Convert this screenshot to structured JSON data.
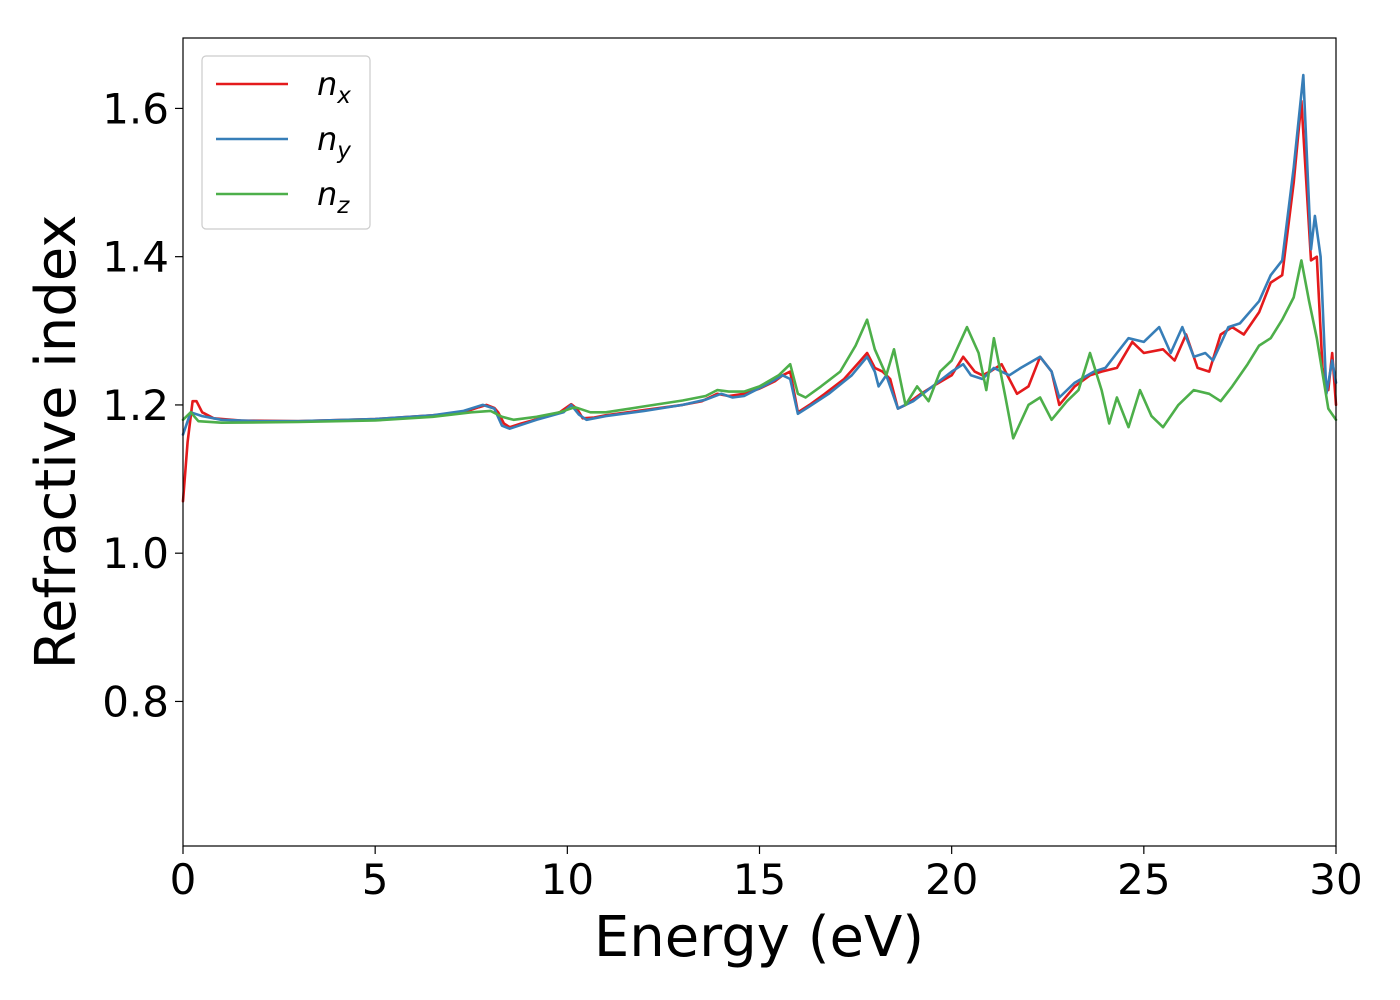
{
  "chart_data": {
    "type": "line",
    "title": "",
    "xlabel": "Energy (eV)",
    "ylabel": "Refractive index",
    "xlim": [
      0,
      30
    ],
    "ylim": [
      0.605,
      1.695
    ],
    "xticks": [
      0,
      5,
      10,
      15,
      20,
      25,
      30
    ],
    "xtick_labels": [
      "0",
      "5",
      "10",
      "15",
      "20",
      "25",
      "30"
    ],
    "yticks": [
      0.8,
      1.0,
      1.2,
      1.4,
      1.6
    ],
    "ytick_labels": [
      "0.8",
      "1.0",
      "1.2",
      "1.4",
      "1.6"
    ],
    "grid": false,
    "legend_position": "top-left",
    "series": [
      {
        "name": "n",
        "subscript": "x",
        "color": "#e41a1c",
        "points": [
          [
            0.0,
            1.07
          ],
          [
            0.12,
            1.15
          ],
          [
            0.25,
            1.205
          ],
          [
            0.35,
            1.205
          ],
          [
            0.5,
            1.19
          ],
          [
            0.8,
            1.182
          ],
          [
            1.5,
            1.179
          ],
          [
            3,
            1.178
          ],
          [
            5,
            1.181
          ],
          [
            6.5,
            1.186
          ],
          [
            7.3,
            1.19
          ],
          [
            7.7,
            1.197
          ],
          [
            7.9,
            1.2
          ],
          [
            8.1,
            1.196
          ],
          [
            8.2,
            1.19
          ],
          [
            8.35,
            1.175
          ],
          [
            8.5,
            1.17
          ],
          [
            8.8,
            1.175
          ],
          [
            9.3,
            1.182
          ],
          [
            9.8,
            1.19
          ],
          [
            10.1,
            1.201
          ],
          [
            10.25,
            1.195
          ],
          [
            10.4,
            1.182
          ],
          [
            10.7,
            1.183
          ],
          [
            11,
            1.186
          ],
          [
            12,
            1.193
          ],
          [
            13,
            1.2
          ],
          [
            13.5,
            1.205
          ],
          [
            13.9,
            1.215
          ],
          [
            14.2,
            1.212
          ],
          [
            14.6,
            1.215
          ],
          [
            15,
            1.222
          ],
          [
            15.4,
            1.232
          ],
          [
            15.6,
            1.24
          ],
          [
            15.8,
            1.245
          ],
          [
            16.0,
            1.19
          ],
          [
            16.3,
            1.2
          ],
          [
            16.7,
            1.215
          ],
          [
            17.2,
            1.235
          ],
          [
            17.6,
            1.258
          ],
          [
            17.8,
            1.27
          ],
          [
            18.0,
            1.25
          ],
          [
            18.2,
            1.245
          ],
          [
            18.4,
            1.235
          ],
          [
            18.6,
            1.195
          ],
          [
            18.8,
            1.2
          ],
          [
            19.2,
            1.215
          ],
          [
            19.6,
            1.228
          ],
          [
            20.0,
            1.24
          ],
          [
            20.3,
            1.265
          ],
          [
            20.6,
            1.245
          ],
          [
            20.8,
            1.24
          ],
          [
            21.0,
            1.245
          ],
          [
            21.3,
            1.255
          ],
          [
            21.7,
            1.215
          ],
          [
            22.0,
            1.225
          ],
          [
            22.3,
            1.265
          ],
          [
            22.6,
            1.245
          ],
          [
            22.8,
            1.2
          ],
          [
            23.2,
            1.225
          ],
          [
            23.6,
            1.24
          ],
          [
            23.9,
            1.245
          ],
          [
            24.3,
            1.25
          ],
          [
            24.7,
            1.285
          ],
          [
            25.0,
            1.27
          ],
          [
            25.5,
            1.275
          ],
          [
            25.8,
            1.26
          ],
          [
            26.1,
            1.295
          ],
          [
            26.4,
            1.25
          ],
          [
            26.7,
            1.245
          ],
          [
            27.0,
            1.295
          ],
          [
            27.3,
            1.305
          ],
          [
            27.6,
            1.295
          ],
          [
            28.0,
            1.325
          ],
          [
            28.3,
            1.365
          ],
          [
            28.6,
            1.375
          ],
          [
            28.9,
            1.5
          ],
          [
            29.1,
            1.61
          ],
          [
            29.35,
            1.395
          ],
          [
            29.5,
            1.4
          ],
          [
            29.65,
            1.25
          ],
          [
            29.8,
            1.22
          ],
          [
            29.9,
            1.27
          ],
          [
            30.0,
            1.2
          ]
        ]
      },
      {
        "name": "n",
        "subscript": "y",
        "color": "#377eb8",
        "points": [
          [
            0.0,
            1.16
          ],
          [
            0.2,
            1.19
          ],
          [
            0.5,
            1.185
          ],
          [
            1,
            1.18
          ],
          [
            2,
            1.178
          ],
          [
            3,
            1.178
          ],
          [
            5,
            1.181
          ],
          [
            6.5,
            1.186
          ],
          [
            7.3,
            1.192
          ],
          [
            7.8,
            1.2
          ],
          [
            8.1,
            1.195
          ],
          [
            8.3,
            1.172
          ],
          [
            8.5,
            1.168
          ],
          [
            9.2,
            1.18
          ],
          [
            9.9,
            1.19
          ],
          [
            10.1,
            1.2
          ],
          [
            10.3,
            1.187
          ],
          [
            10.5,
            1.18
          ],
          [
            11,
            1.185
          ],
          [
            12,
            1.192
          ],
          [
            13,
            1.2
          ],
          [
            13.6,
            1.207
          ],
          [
            14,
            1.215
          ],
          [
            14.3,
            1.21
          ],
          [
            14.6,
            1.212
          ],
          [
            15.2,
            1.228
          ],
          [
            15.6,
            1.24
          ],
          [
            15.8,
            1.235
          ],
          [
            16.0,
            1.188
          ],
          [
            16.3,
            1.198
          ],
          [
            16.8,
            1.215
          ],
          [
            17.4,
            1.24
          ],
          [
            17.8,
            1.265
          ],
          [
            18.0,
            1.245
          ],
          [
            18.1,
            1.225
          ],
          [
            18.3,
            1.24
          ],
          [
            18.6,
            1.195
          ],
          [
            19.0,
            1.205
          ],
          [
            19.5,
            1.225
          ],
          [
            20.0,
            1.245
          ],
          [
            20.3,
            1.255
          ],
          [
            20.5,
            1.24
          ],
          [
            20.8,
            1.235
          ],
          [
            21.1,
            1.25
          ],
          [
            21.5,
            1.24
          ],
          [
            21.8,
            1.25
          ],
          [
            22.3,
            1.265
          ],
          [
            22.6,
            1.245
          ],
          [
            22.8,
            1.21
          ],
          [
            23.2,
            1.23
          ],
          [
            23.7,
            1.245
          ],
          [
            24.0,
            1.25
          ],
          [
            24.3,
            1.27
          ],
          [
            24.6,
            1.29
          ],
          [
            25.0,
            1.285
          ],
          [
            25.4,
            1.305
          ],
          [
            25.7,
            1.27
          ],
          [
            26.0,
            1.305
          ],
          [
            26.3,
            1.265
          ],
          [
            26.6,
            1.27
          ],
          [
            26.8,
            1.26
          ],
          [
            27.2,
            1.305
          ],
          [
            27.5,
            1.31
          ],
          [
            28.0,
            1.34
          ],
          [
            28.3,
            1.375
          ],
          [
            28.6,
            1.395
          ],
          [
            28.9,
            1.52
          ],
          [
            29.15,
            1.645
          ],
          [
            29.35,
            1.41
          ],
          [
            29.45,
            1.455
          ],
          [
            29.6,
            1.4
          ],
          [
            29.75,
            1.215
          ],
          [
            29.9,
            1.26
          ],
          [
            30.0,
            1.23
          ]
        ]
      },
      {
        "name": "n",
        "subscript": "z",
        "color": "#4daf4a",
        "points": [
          [
            0.0,
            1.18
          ],
          [
            0.2,
            1.19
          ],
          [
            0.4,
            1.178
          ],
          [
            1,
            1.176
          ],
          [
            3,
            1.177
          ],
          [
            5,
            1.179
          ],
          [
            6.5,
            1.184
          ],
          [
            7.5,
            1.19
          ],
          [
            8,
            1.192
          ],
          [
            8.3,
            1.184
          ],
          [
            8.6,
            1.18
          ],
          [
            9.2,
            1.184
          ],
          [
            9.8,
            1.19
          ],
          [
            10.2,
            1.197
          ],
          [
            10.6,
            1.19
          ],
          [
            11,
            1.19
          ],
          [
            12,
            1.198
          ],
          [
            13,
            1.206
          ],
          [
            13.6,
            1.212
          ],
          [
            13.9,
            1.22
          ],
          [
            14.2,
            1.218
          ],
          [
            14.6,
            1.218
          ],
          [
            15.0,
            1.225
          ],
          [
            15.5,
            1.24
          ],
          [
            15.8,
            1.255
          ],
          [
            16.0,
            1.215
          ],
          [
            16.2,
            1.21
          ],
          [
            16.6,
            1.225
          ],
          [
            17.1,
            1.245
          ],
          [
            17.5,
            1.28
          ],
          [
            17.8,
            1.315
          ],
          [
            18.0,
            1.275
          ],
          [
            18.3,
            1.24
          ],
          [
            18.5,
            1.275
          ],
          [
            18.8,
            1.2
          ],
          [
            19.1,
            1.225
          ],
          [
            19.4,
            1.205
          ],
          [
            19.7,
            1.245
          ],
          [
            20.0,
            1.26
          ],
          [
            20.4,
            1.305
          ],
          [
            20.7,
            1.27
          ],
          [
            20.9,
            1.22
          ],
          [
            21.1,
            1.29
          ],
          [
            21.4,
            1.21
          ],
          [
            21.6,
            1.155
          ],
          [
            22.0,
            1.2
          ],
          [
            22.3,
            1.21
          ],
          [
            22.6,
            1.18
          ],
          [
            23.0,
            1.205
          ],
          [
            23.3,
            1.22
          ],
          [
            23.6,
            1.27
          ],
          [
            23.9,
            1.22
          ],
          [
            24.1,
            1.175
          ],
          [
            24.3,
            1.21
          ],
          [
            24.6,
            1.17
          ],
          [
            24.9,
            1.22
          ],
          [
            25.2,
            1.185
          ],
          [
            25.5,
            1.17
          ],
          [
            25.9,
            1.2
          ],
          [
            26.3,
            1.22
          ],
          [
            26.7,
            1.215
          ],
          [
            27.0,
            1.205
          ],
          [
            27.3,
            1.225
          ],
          [
            27.7,
            1.255
          ],
          [
            28.0,
            1.28
          ],
          [
            28.3,
            1.29
          ],
          [
            28.6,
            1.315
          ],
          [
            28.9,
            1.345
          ],
          [
            29.1,
            1.395
          ],
          [
            29.3,
            1.34
          ],
          [
            29.5,
            1.29
          ],
          [
            29.8,
            1.195
          ],
          [
            30.0,
            1.18
          ]
        ]
      }
    ]
  }
}
